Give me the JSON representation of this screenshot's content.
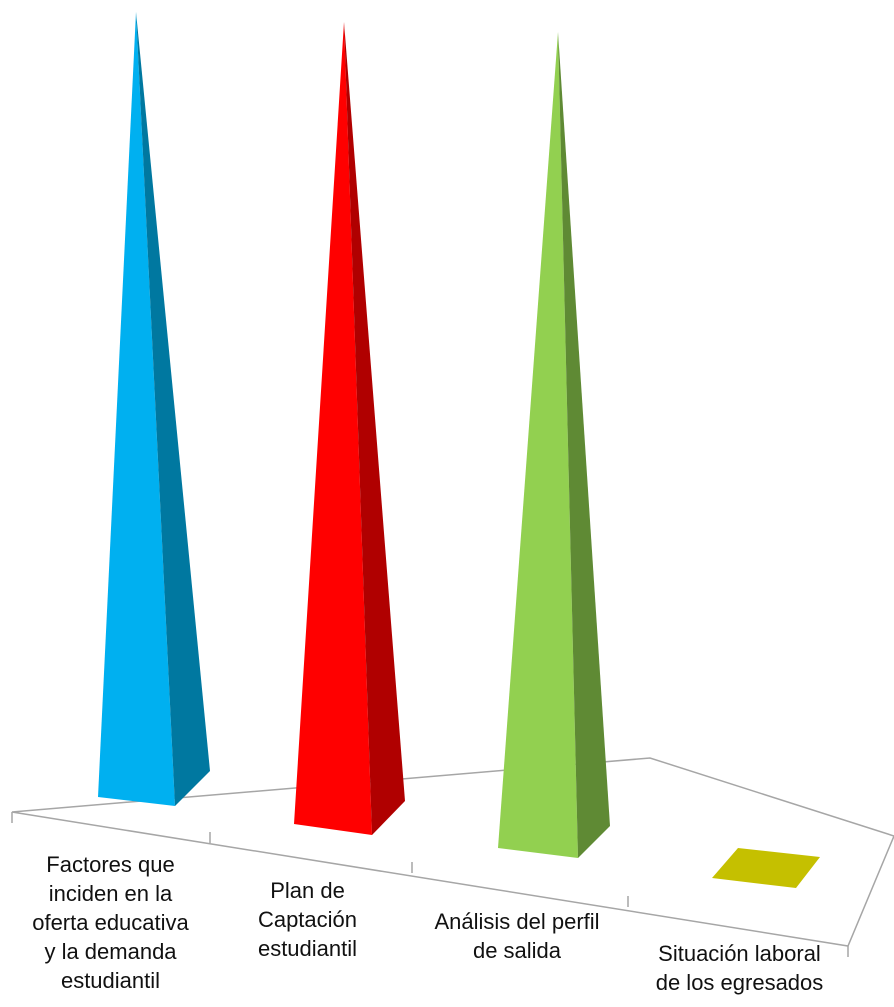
{
  "chart_data": {
    "type": "bar",
    "style": "3d-pyramid",
    "title": "",
    "xlabel": "",
    "ylabel": "",
    "categories": [
      "Factores que inciden en la oferta educativa y la demanda estudiantil",
      "Plan de Captación estudiantil",
      "Análisis del perfil de salida",
      "Situación laboral de los egresados"
    ],
    "category_lines": [
      [
        "Factores que",
        "inciden en la",
        "oferta educativa",
        "y la demanda",
        "estudiantil"
      ],
      [
        "Plan de",
        "Captación",
        "estudiantil"
      ],
      [
        "Análisis del perfil",
        "de salida"
      ],
      [
        "Situación laboral",
        "de los egresados"
      ]
    ],
    "values": [
      100,
      100,
      100,
      0
    ],
    "ylim": [
      0,
      100
    ],
    "grid": false,
    "legend": "none",
    "colors": {
      "front": [
        "#00b0f0",
        "#ff0000",
        "#92d050",
        "#c5c000"
      ],
      "side": [
        "#0078a0",
        "#b00000",
        "#5f8a34",
        "#c5c000"
      ],
      "floor": "#a6a6a6"
    }
  }
}
